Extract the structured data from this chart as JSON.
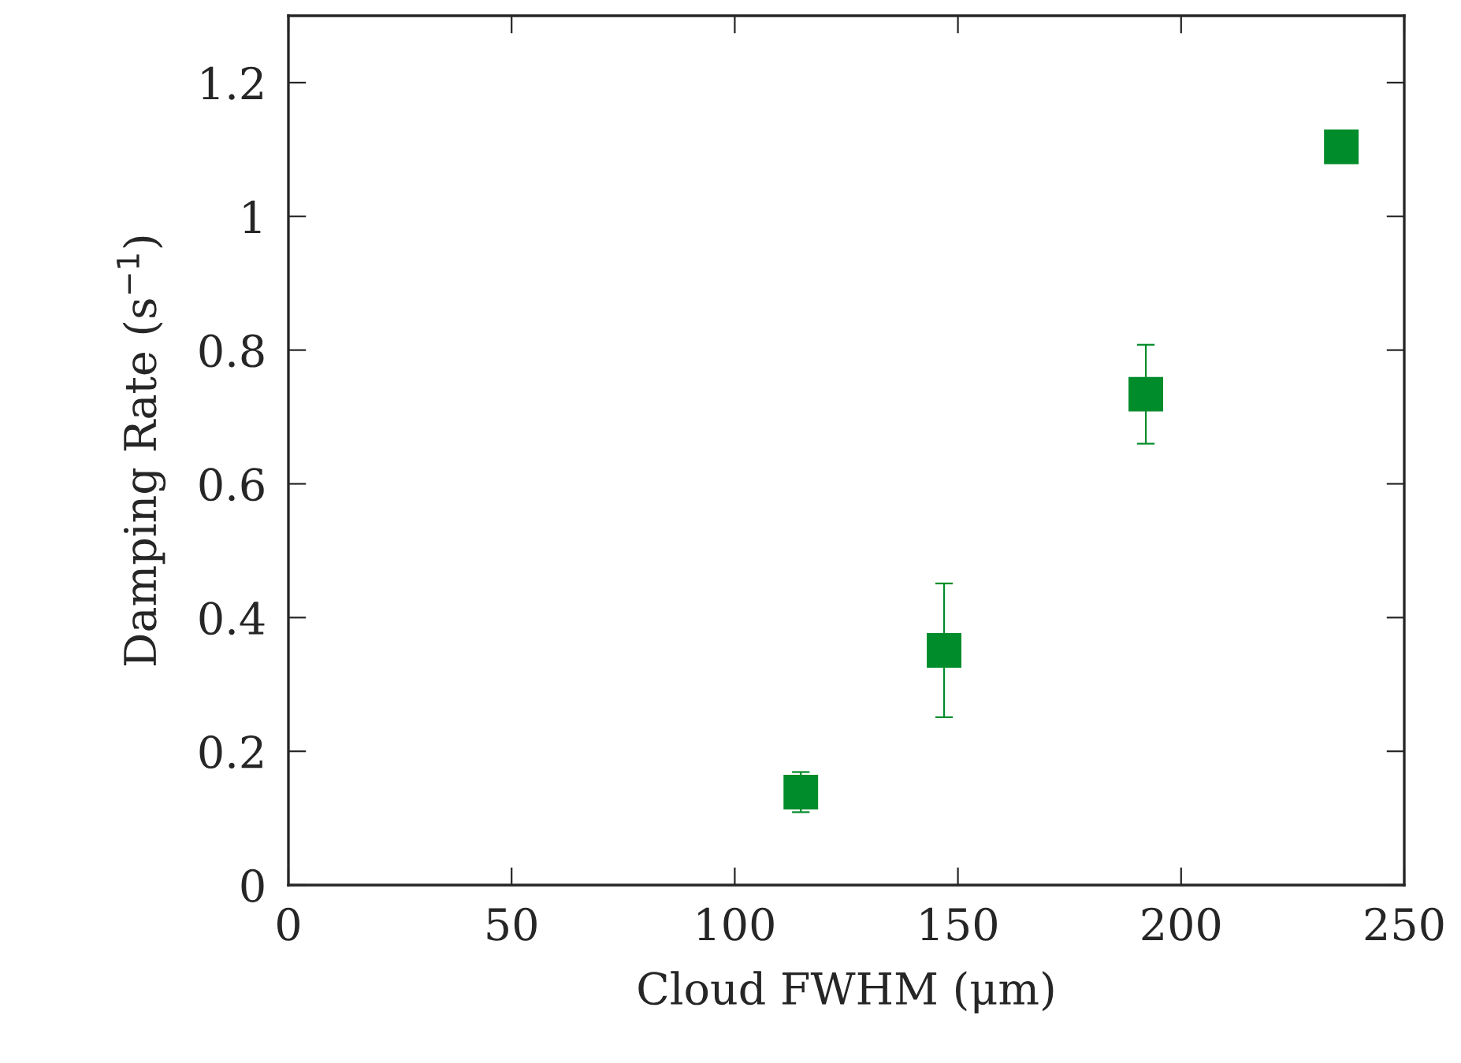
{
  "chart_data": {
    "type": "scatter",
    "xlabel": "Cloud FWHM (μm)",
    "ylabel": "Damping Rate (s$^{−1}$)",
    "x": [
      114.8,
      146.9,
      192.1,
      235.9
    ],
    "series": [
      {
        "color": "#008c2a",
        "values": [
          0.139,
          0.351,
          0.734,
          1.104
        ],
        "errors": [
          0.03,
          0.1,
          0.074,
          0.015
        ]
      }
    ],
    "marker": "square",
    "xlim": [
      0,
      250
    ],
    "ylim": [
      0,
      1.3
    ],
    "xticks": [
      0,
      50,
      100,
      150,
      200,
      250
    ],
    "yticks": [
      0,
      0.2,
      0.4,
      0.6,
      0.8,
      1,
      1.2
    ],
    "grid": false,
    "legend": false
  }
}
